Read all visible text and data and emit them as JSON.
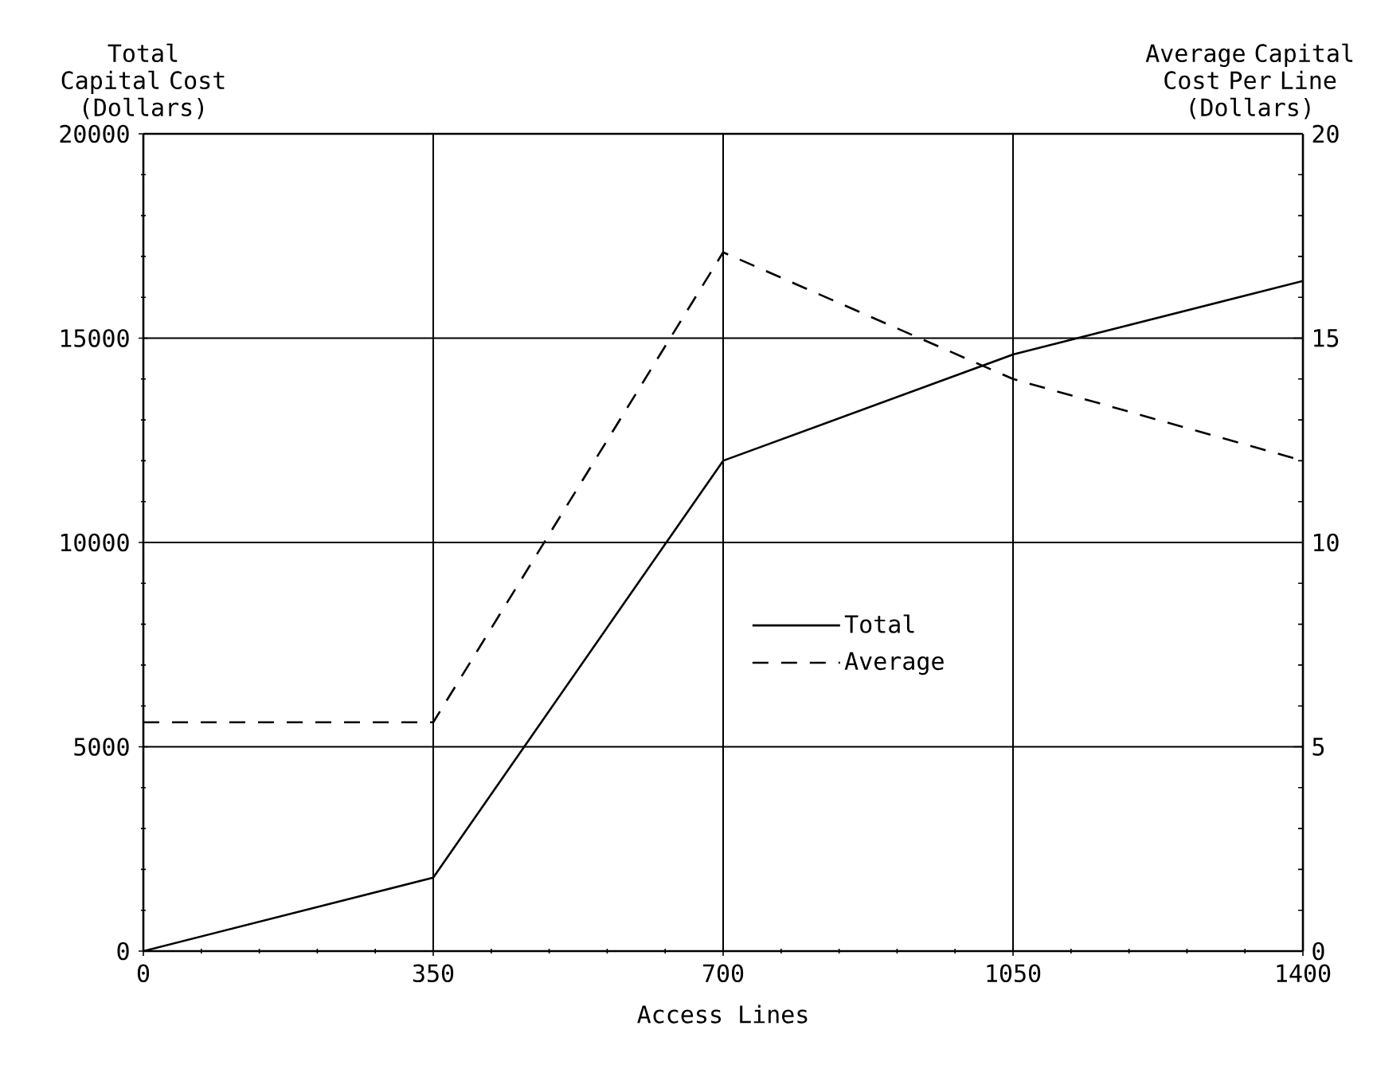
{
  "chart_data": {
    "type": "line",
    "xlabel": "Access Lines",
    "ylabel": "Total Capital Cost (Dollars)",
    "y2label": "Average Capital Cost Per Line (Dollars)",
    "x": [
      0,
      350,
      700,
      1050,
      1400
    ],
    "series": [
      {
        "name": "Total",
        "color": "#000000",
        "line_style": "solid",
        "values": [
          0,
          1800,
          12000,
          14600,
          16400
        ]
      },
      {
        "name": "Average",
        "color": "#000000",
        "line_style": "dashed",
        "axis": "y2",
        "values": [
          5.6,
          5.6,
          17.1,
          14,
          12
        ]
      }
    ],
    "xlim": [
      0,
      1400
    ],
    "xticks": [
      0,
      350,
      700,
      1050,
      1400
    ],
    "ylim": [
      0,
      20000
    ],
    "yticks": [
      0,
      5000,
      10000,
      15000,
      20000
    ],
    "y2lim": [
      0,
      20
    ],
    "y2ticks": [
      0,
      5,
      10,
      15,
      20
    ],
    "grid": true,
    "legend": "center",
    "marker": "none"
  }
}
